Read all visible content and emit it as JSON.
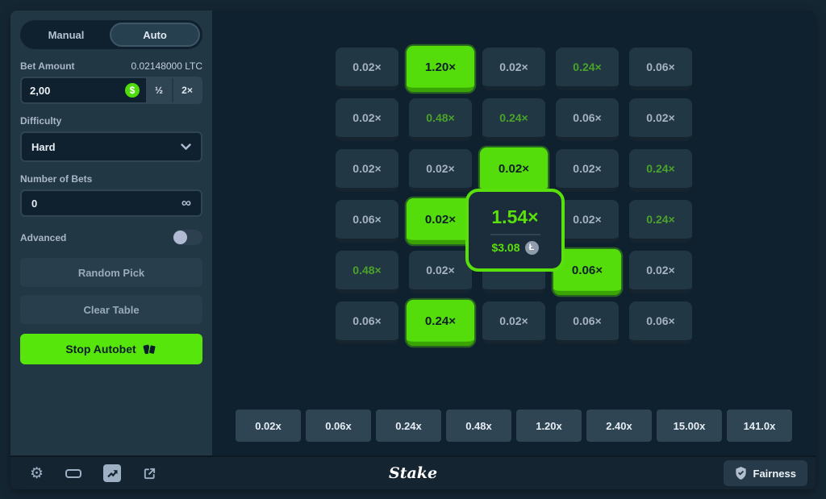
{
  "sidebar": {
    "tabs": {
      "manual_label": "Manual",
      "auto_label": "Auto",
      "active": "Auto"
    },
    "bet": {
      "label": "Bet Amount",
      "balance": "0.02148000 LTC",
      "amount_value": "2,00",
      "currency_symbol": "$",
      "half_label": "½",
      "double_label": "2×"
    },
    "difficulty": {
      "label": "Difficulty",
      "selected": "Hard"
    },
    "number_of_bets": {
      "label": "Number of Bets",
      "value": "0",
      "infinity_symbol": "∞"
    },
    "advanced": {
      "label": "Advanced",
      "enabled": false
    },
    "random_pick_label": "Random Pick",
    "clear_table_label": "Clear Table",
    "stop_autobet_label": "Stop Autobet"
  },
  "board": {
    "rows": 6,
    "cols": 5,
    "tiles": [
      {
        "label": "0.02×",
        "state": "normal"
      },
      {
        "label": "1.20×",
        "state": "selected"
      },
      {
        "label": "0.02×",
        "state": "normal"
      },
      {
        "label": "0.24×",
        "state": "green"
      },
      {
        "label": "0.06×",
        "state": "normal"
      },
      {
        "label": "0.02×",
        "state": "normal"
      },
      {
        "label": "0.48×",
        "state": "green"
      },
      {
        "label": "0.24×",
        "state": "green"
      },
      {
        "label": "0.06×",
        "state": "normal"
      },
      {
        "label": "0.02×",
        "state": "normal"
      },
      {
        "label": "0.02×",
        "state": "normal"
      },
      {
        "label": "0.02×",
        "state": "normal"
      },
      {
        "label": "0.02×",
        "state": "selected"
      },
      {
        "label": "0.02×",
        "state": "normal"
      },
      {
        "label": "0.24×",
        "state": "green"
      },
      {
        "label": "0.06×",
        "state": "normal"
      },
      {
        "label": "0.02×",
        "state": "selected"
      },
      {
        "label": "",
        "state": "covered"
      },
      {
        "label": "0.02×",
        "state": "normal"
      },
      {
        "label": "0.24×",
        "state": "green"
      },
      {
        "label": "0.48×",
        "state": "green"
      },
      {
        "label": "0.02×",
        "state": "normal"
      },
      {
        "label": "",
        "state": "covered"
      },
      {
        "label": "0.06×",
        "state": "selected"
      },
      {
        "label": "0.02×",
        "state": "normal"
      },
      {
        "label": "0.06×",
        "state": "normal"
      },
      {
        "label": "0.24×",
        "state": "selected"
      },
      {
        "label": "0.02×",
        "state": "normal"
      },
      {
        "label": "0.06×",
        "state": "normal"
      },
      {
        "label": "0.06×",
        "state": "normal"
      }
    ]
  },
  "win_popup": {
    "multiplier": "1.54×",
    "payout": "$3.08",
    "currency": "LTC",
    "currency_symbol": "Ł"
  },
  "payout_legend": [
    "0.02x",
    "0.06x",
    "0.24x",
    "0.48x",
    "1.20x",
    "2.40x",
    "15.00x",
    "141.0x"
  ],
  "footer": {
    "brand": "Stake",
    "fairness_label": "Fairness",
    "icons": [
      "settings",
      "theatre-mode",
      "live-stats",
      "popout"
    ]
  },
  "colors": {
    "page_bg": "#152633",
    "sidebar_bg": "#213743",
    "game_bg": "#0f212e",
    "footer_bg": "#142431",
    "accent_green": "#55dd0b",
    "green_text": "#4ba32a",
    "tile_bg": "#213743",
    "payout_tile_bg": "#2f4553",
    "muted_text": "#a9b6c9"
  }
}
